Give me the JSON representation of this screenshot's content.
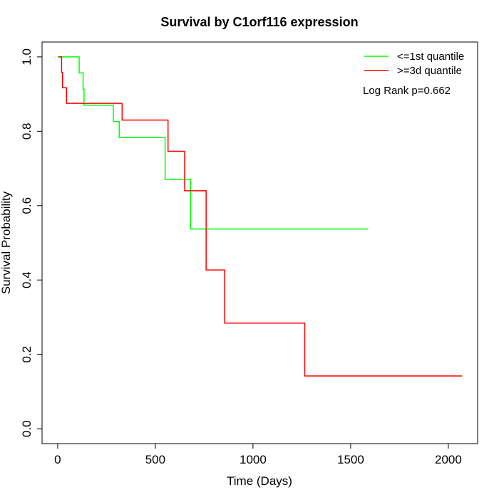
{
  "chart_data": {
    "type": "line",
    "title": "Survival by C1orf116 expression",
    "xlabel": "Time (Days)",
    "ylabel": "Survival Probability",
    "xlim": [
      -80,
      2150
    ],
    "ylim": [
      -0.04,
      1.04
    ],
    "x_ticks": [
      0,
      500,
      1000,
      1500,
      2000
    ],
    "y_ticks": [
      0.0,
      0.2,
      0.4,
      0.6,
      0.8,
      1.0
    ],
    "x_tick_labels": [
      "0",
      "500",
      "1000",
      "1500",
      "2000"
    ],
    "y_tick_labels": [
      "0.0",
      "0.2",
      "0.4",
      "0.6",
      "0.8",
      "1.0"
    ],
    "legend_position": "top-right",
    "annotation": "Log Rank p=0.662",
    "series": [
      {
        "name": "<=1st quantile",
        "color": "#00ff00",
        "step": true,
        "x": [
          0,
          110,
          130,
          135,
          285,
          315,
          550,
          680,
          1590
        ],
        "y": [
          1.0,
          0.957,
          0.913,
          0.87,
          0.826,
          0.783,
          0.671,
          0.537,
          0.537
        ]
      },
      {
        "name": ">=3d quantile",
        "color": "#ff0000",
        "step": true,
        "x": [
          5,
          20,
          25,
          45,
          330,
          565,
          650,
          760,
          855,
          1265,
          2070
        ],
        "y": [
          1.0,
          0.958,
          0.917,
          0.875,
          0.83,
          0.746,
          0.64,
          0.427,
          0.284,
          0.142,
          0.142
        ]
      }
    ]
  }
}
